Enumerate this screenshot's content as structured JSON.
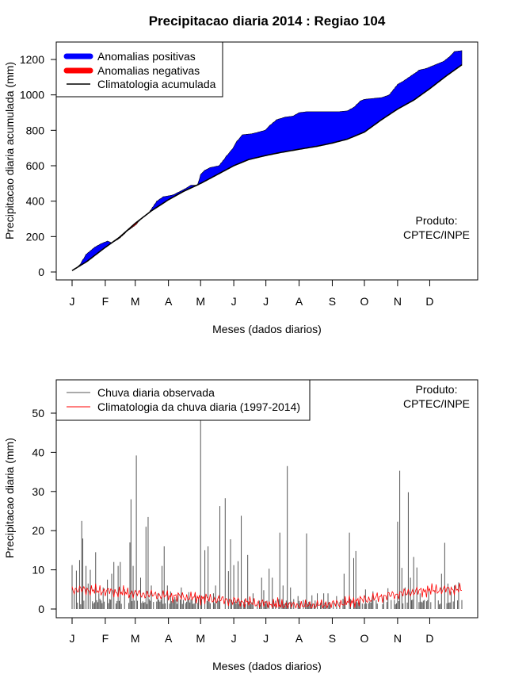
{
  "chart_data": [
    {
      "type": "area",
      "title": "Precipitacao diaria 2014 : Regiao 104",
      "xlabel": "Meses (dados diarios)",
      "ylabel": "Precipitacao diaria acumulada (mm)",
      "xlim": [
        1,
        365
      ],
      "ylim": [
        0,
        1250
      ],
      "yticks": [
        0,
        200,
        400,
        600,
        800,
        1000,
        1200
      ],
      "month_labels": [
        "J",
        "F",
        "M",
        "A",
        "M",
        "J",
        "J",
        "A",
        "S",
        "O",
        "N",
        "D"
      ],
      "month_days": [
        1,
        32,
        60,
        91,
        121,
        152,
        182,
        213,
        244,
        274,
        305,
        335
      ],
      "legend": {
        "positive": "Anomalias positivas",
        "negative": "Anomalias negativas",
        "climatology": "Climatologia acumulada"
      },
      "note_line1": "Produto:",
      "note_line2": "CPTEC/INPE",
      "colors": {
        "positive": "#0000ff",
        "negative": "#ff0000",
        "climatology": "#000000"
      },
      "climatology_knots": [
        [
          1,
          8
        ],
        [
          15,
          60
        ],
        [
          30,
          130
        ],
        [
          45,
          195
        ],
        [
          60,
          275
        ],
        [
          75,
          345
        ],
        [
          91,
          408
        ],
        [
          105,
          455
        ],
        [
          121,
          500
        ],
        [
          135,
          545
        ],
        [
          152,
          600
        ],
        [
          166,
          635
        ],
        [
          182,
          658
        ],
        [
          196,
          675
        ],
        [
          213,
          693
        ],
        [
          230,
          710
        ],
        [
          244,
          728
        ],
        [
          258,
          750
        ],
        [
          274,
          790
        ],
        [
          290,
          860
        ],
        [
          305,
          920
        ],
        [
          320,
          970
        ],
        [
          335,
          1035
        ],
        [
          350,
          1105
        ],
        [
          365,
          1170
        ]
      ],
      "observed_knots": [
        [
          1,
          8
        ],
        [
          8,
          40
        ],
        [
          14,
          100
        ],
        [
          22,
          140
        ],
        [
          28,
          160
        ],
        [
          34,
          175
        ],
        [
          38,
          165
        ],
        [
          45,
          190
        ],
        [
          52,
          230
        ],
        [
          60,
          265
        ],
        [
          66,
          305
        ],
        [
          72,
          330
        ],
        [
          80,
          400
        ],
        [
          86,
          425
        ],
        [
          95,
          435
        ],
        [
          100,
          450
        ],
        [
          108,
          475
        ],
        [
          112,
          490
        ],
        [
          118,
          490
        ],
        [
          121,
          550
        ],
        [
          125,
          575
        ],
        [
          130,
          590
        ],
        [
          138,
          600
        ],
        [
          145,
          655
        ],
        [
          150,
          690
        ],
        [
          155,
          740
        ],
        [
          160,
          775
        ],
        [
          168,
          780
        ],
        [
          175,
          790
        ],
        [
          181,
          800
        ],
        [
          186,
          830
        ],
        [
          192,
          860
        ],
        [
          200,
          875
        ],
        [
          207,
          880
        ],
        [
          213,
          900
        ],
        [
          220,
          905
        ],
        [
          230,
          905
        ],
        [
          240,
          905
        ],
        [
          250,
          905
        ],
        [
          258,
          910
        ],
        [
          264,
          930
        ],
        [
          270,
          965
        ],
        [
          274,
          975
        ],
        [
          282,
          980
        ],
        [
          290,
          985
        ],
        [
          297,
          1000
        ],
        [
          305,
          1060
        ],
        [
          312,
          1085
        ],
        [
          318,
          1110
        ],
        [
          325,
          1140
        ],
        [
          332,
          1150
        ],
        [
          340,
          1170
        ],
        [
          348,
          1190
        ],
        [
          355,
          1225
        ],
        [
          358,
          1245
        ],
        [
          365,
          1250
        ]
      ]
    },
    {
      "type": "bar",
      "xlabel": "Meses (dados diarios)",
      "ylabel": "Precipitacao diaria (mm)",
      "xlim": [
        1,
        365
      ],
      "ylim": [
        0,
        55
      ],
      "yticks": [
        0,
        10,
        20,
        30,
        40,
        50
      ],
      "month_labels": [
        "J",
        "F",
        "M",
        "A",
        "M",
        "J",
        "J",
        "A",
        "S",
        "O",
        "N",
        "D"
      ],
      "month_days": [
        1,
        32,
        60,
        91,
        121,
        152,
        182,
        213,
        244,
        274,
        305,
        335
      ],
      "legend": {
        "observed": "Chuva diaria observada",
        "climatology": "Climatologia da chuva diaria (1997-2014)"
      },
      "note_line1": "Produto:",
      "note_line2": "CPTEC/INPE",
      "colors": {
        "observed": "#555555",
        "climatology": "#ff0000"
      },
      "peaks": [
        [
          1,
          11.2
        ],
        [
          3,
          4.5
        ],
        [
          5,
          9.8
        ],
        [
          8,
          12.5
        ],
        [
          10,
          22.5
        ],
        [
          11,
          18
        ],
        [
          14,
          11
        ],
        [
          16,
          6.5
        ],
        [
          18,
          10
        ],
        [
          23,
          14.5
        ],
        [
          26,
          4
        ],
        [
          30,
          5.5
        ],
        [
          34,
          7.5
        ],
        [
          38,
          9
        ],
        [
          40,
          12
        ],
        [
          44,
          11
        ],
        [
          46,
          12
        ],
        [
          50,
          5
        ],
        [
          55,
          17
        ],
        [
          56,
          28
        ],
        [
          58,
          11
        ],
        [
          61,
          39.2
        ],
        [
          65,
          8
        ],
        [
          70,
          21
        ],
        [
          72,
          23.5
        ],
        [
          75,
          6
        ],
        [
          81,
          4
        ],
        [
          85,
          11
        ],
        [
          87,
          16
        ],
        [
          90,
          6
        ],
        [
          93,
          4.5
        ],
        [
          97,
          3
        ],
        [
          100,
          4
        ],
        [
          103,
          5.5
        ],
        [
          110,
          4.3
        ],
        [
          116,
          3.5
        ],
        [
          121,
          52
        ],
        [
          125,
          15
        ],
        [
          128,
          16
        ],
        [
          133,
          4
        ],
        [
          135,
          6
        ],
        [
          139,
          26.3
        ],
        [
          144,
          28.3
        ],
        [
          147,
          9.7
        ],
        [
          149,
          17.8
        ],
        [
          152,
          11.2
        ],
        [
          156,
          12.2
        ],
        [
          159,
          23.8
        ],
        [
          165,
          13.8
        ],
        [
          170,
          4
        ],
        [
          178,
          8
        ],
        [
          180,
          4.8
        ],
        [
          185,
          10.3
        ],
        [
          188,
          8
        ],
        [
          195,
          19.5
        ],
        [
          198,
          6
        ],
        [
          202,
          36.5
        ],
        [
          205,
          5.5
        ],
        [
          212,
          3.3
        ],
        [
          220,
          19.3
        ],
        [
          225,
          3.5
        ],
        [
          230,
          4
        ],
        [
          236,
          4
        ],
        [
          240,
          4
        ],
        [
          248,
          3.3
        ],
        [
          255,
          9
        ],
        [
          260,
          19.5
        ],
        [
          264,
          13
        ],
        [
          266,
          14.8
        ],
        [
          270,
          2.5
        ],
        [
          275,
          5
        ],
        [
          282,
          4.5
        ],
        [
          292,
          3.3
        ],
        [
          296,
          5.3
        ],
        [
          305,
          22.3
        ],
        [
          307,
          35.3
        ],
        [
          309,
          10.5
        ],
        [
          312,
          5.5
        ],
        [
          315,
          29.8
        ],
        [
          317,
          8
        ],
        [
          320,
          13.3
        ],
        [
          323,
          10.6
        ],
        [
          326,
          4
        ],
        [
          334,
          5
        ],
        [
          340,
          4.8
        ],
        [
          346,
          9
        ],
        [
          349,
          16.9
        ],
        [
          352,
          6.5
        ],
        [
          355,
          4.5
        ],
        [
          358,
          6
        ],
        [
          362,
          6.8
        ]
      ]
    }
  ]
}
